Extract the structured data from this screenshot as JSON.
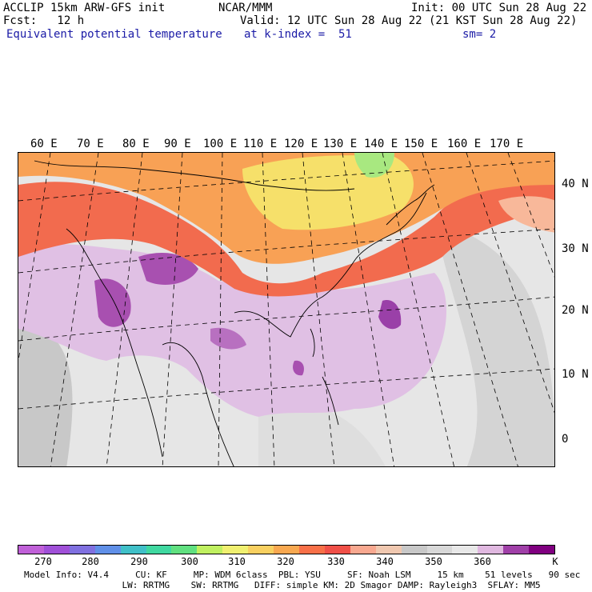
{
  "header": {
    "line1_left": "ACCLIP 15km ARW-GFS init",
    "line1_mid": "NCAR/MMM",
    "line1_right": "Init: 00 UTC Sun 28 Aug 22",
    "line2_left": "Fcst:   12 h",
    "line2_right": "Valid: 12 UTC Sun 28 Aug 22 (21 KST Sun 28 Aug 22)",
    "line3_left": "Equivalent potential temperature",
    "line3_mid": "at k-index =  51",
    "line3_right": "sm= 2"
  },
  "map": {
    "lon_labels": [
      "60 E",
      "70 E",
      "80 E",
      "90 E",
      "100 E",
      "110 E",
      "120 E",
      "130 E",
      "140 E",
      "150 E",
      "160 E",
      "170 E"
    ],
    "lat_labels": [
      "40 N",
      "30 N",
      "20 N",
      "10 N",
      "0"
    ]
  },
  "colorbar": {
    "colors": [
      "#c060d8",
      "#a050d8",
      "#8070e0",
      "#6090e8",
      "#40c0c8",
      "#40d8a0",
      "#60e080",
      "#c0f060",
      "#f0f070",
      "#f8d060",
      "#f8a850",
      "#f87048",
      "#f05048",
      "#f8a890",
      "#f0c8b0",
      "#c8c8c8",
      "#d8d8d8",
      "#e8e8e8",
      "#e0b8e0",
      "#a040a8",
      "#800080"
    ],
    "tick_labels": [
      "270",
      "280",
      "290",
      "300",
      "310",
      "320",
      "330",
      "340",
      "350",
      "360",
      "K"
    ]
  },
  "footer": {
    "line1": "Model Info: V4.4     CU: KF     MP: WDM 6class  PBL: YSU     SF: Noah LSM     15 km    51 levels   90 sec",
    "line2": "    LW: RRTMG    SW: RRTMG   DIFF: simple KM: 2D Smagor DAMP: Rayleigh3  SFLAY: MM5"
  }
}
